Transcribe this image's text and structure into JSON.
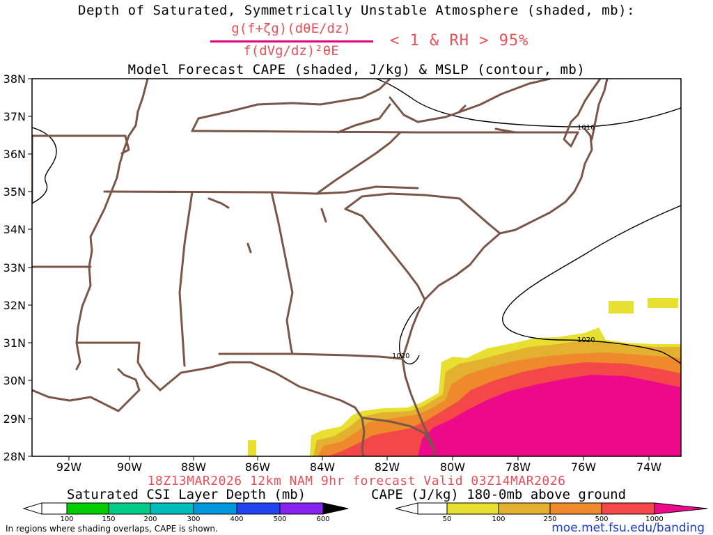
{
  "header": {
    "title_line1": "Depth of Saturated, Symmetrically Unstable Atmosphere (shaded, mb):",
    "formula_numerator": "g(f+ζg)(dθE/dz)",
    "formula_denominator": "f(dVg/dz)²θE",
    "formula_condition": "< 1 & RH > 95%",
    "title_line3": "Model Forecast CAPE (shaded, J/kg) & MSLP (contour, mb)"
  },
  "map": {
    "lat_labels": [
      "38N",
      "37N",
      "36N",
      "35N",
      "34N",
      "33N",
      "32N",
      "31N",
      "30N",
      "29N",
      "28N"
    ],
    "lon_labels": [
      "92W",
      "90W",
      "88W",
      "86W",
      "84W",
      "82W",
      "80W",
      "78W",
      "76W",
      "74W"
    ],
    "isobar_labels": [
      "1016",
      "1020",
      "1020"
    ],
    "colors": {
      "border": "#7a5548",
      "isobar": "#000000",
      "cape_50": "#e8e030",
      "cape_100": "#e4b030",
      "cape_250": "#ee8a2c",
      "cape_500": "#f44848",
      "cape_1000": "#ec0a8a"
    }
  },
  "footer": {
    "forecast_line": "18Z13MAR2026 12km NAM 9hr forecast Valid 03Z14MAR2026",
    "csi_label": "Saturated CSI Layer Depth (mb)",
    "cape_label": "CAPE (J/kg) 180-0mb above ground",
    "csi_ticks": [
      "100",
      "150",
      "200",
      "300",
      "400",
      "500",
      "600"
    ],
    "csi_colors": [
      "#ffffff",
      "#00cc00",
      "#00cc88",
      "#00bbbb",
      "#0099dd",
      "#2244ee",
      "#8822ee",
      "#000000"
    ],
    "cape_ticks": [
      "50",
      "100",
      "250",
      "500",
      "1000"
    ],
    "cape_colors": [
      "#ffffff",
      "#e8e030",
      "#e4b030",
      "#ee8a2c",
      "#f44848",
      "#ec0a8a"
    ],
    "note": "In regions where shading overlaps, CAPE is shown.",
    "url": "moe.met.fsu.edu/banding"
  }
}
